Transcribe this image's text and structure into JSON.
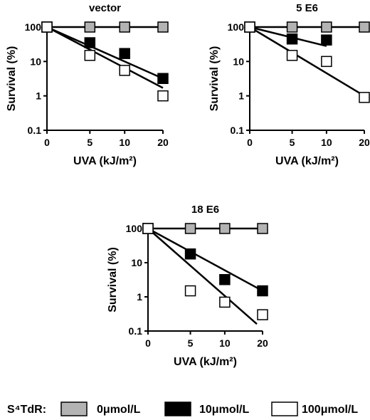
{
  "colors": {
    "gray": "#b3b3b3",
    "black": "#000000",
    "white": "#ffffff"
  },
  "chart_data": [
    {
      "type": "scatter",
      "title": "vector",
      "xlabel": "UVA (kJ/m²)",
      "ylabel": "Survival (%)",
      "y_scale": "log",
      "ylim": [
        0.1,
        100
      ],
      "x_ticks": [
        "0",
        "5",
        "10",
        "20"
      ],
      "y_ticks": [
        "0.1",
        "1",
        "10",
        "100"
      ],
      "series": [
        {
          "name": "0μmol/L",
          "x": [
            0,
            5,
            10,
            20
          ],
          "y": [
            100,
            100,
            100,
            100
          ],
          "fit": [
            [
              0,
              100
            ],
            [
              20,
              100
            ]
          ]
        },
        {
          "name": "10μmol/L",
          "x": [
            0,
            5,
            10,
            20
          ],
          "y": [
            100,
            35,
            17,
            3.2
          ],
          "fit": [
            [
              0,
              100
            ],
            [
              20,
              3.2
            ]
          ]
        },
        {
          "name": "100μmol/L",
          "x": [
            0,
            5,
            10,
            20
          ],
          "y": [
            100,
            15,
            5.5,
            1
          ],
          "fit": [
            [
              0,
              100
            ],
            [
              20,
              1.7
            ]
          ]
        }
      ]
    },
    {
      "type": "scatter",
      "title": "5 E6",
      "xlabel": "UVA (kJ/m²)",
      "ylabel": "Survival (%)",
      "y_scale": "log",
      "ylim": [
        0.1,
        100
      ],
      "x_ticks": [
        "0",
        "5",
        "10",
        "20"
      ],
      "y_ticks": [
        "0.1",
        "1",
        "10",
        "100"
      ],
      "series": [
        {
          "name": "0μmol/L",
          "x": [
            0,
            5,
            10,
            20
          ],
          "y": [
            100,
            100,
            100,
            100
          ],
          "fit": [
            [
              0,
              100
            ],
            [
              20,
              100
            ]
          ]
        },
        {
          "name": "10μmol/L",
          "x": [
            0,
            5,
            10
          ],
          "y": [
            100,
            45,
            42
          ],
          "fit": [
            [
              0,
              100
            ],
            [
              10,
              28
            ]
          ]
        },
        {
          "name": "100μmol/L",
          "x": [
            0,
            5,
            10,
            20
          ],
          "y": [
            100,
            15,
            10,
            0.9
          ],
          "fit": [
            [
              0,
              100
            ],
            [
              20,
              1.0
            ]
          ]
        }
      ]
    },
    {
      "type": "scatter",
      "title": "18 E6",
      "xlabel": "UVA (kJ/m²)",
      "ylabel": "Survival (%)",
      "y_scale": "log",
      "ylim": [
        0.1,
        100
      ],
      "x_ticks": [
        "0",
        "5",
        "10",
        "20"
      ],
      "y_ticks": [
        "0.1",
        "1",
        "10",
        "100"
      ],
      "series": [
        {
          "name": "0μmol/L",
          "x": [
            0,
            5,
            10,
            20
          ],
          "y": [
            100,
            100,
            100,
            100
          ],
          "fit": [
            [
              0,
              100
            ],
            [
              20,
              100
            ]
          ]
        },
        {
          "name": "10μmol/L",
          "x": [
            0,
            5,
            10,
            20
          ],
          "y": [
            100,
            18,
            3.2,
            1.5
          ],
          "fit": [
            [
              0,
              100
            ],
            [
              20,
              1.5
            ]
          ]
        },
        {
          "name": "100μmol/L",
          "x": [
            0,
            5,
            10,
            20
          ],
          "y": [
            100,
            1.5,
            0.7,
            0.3
          ],
          "fit": [
            [
              0,
              100
            ],
            [
              18.5,
              0.16
            ]
          ]
        }
      ]
    }
  ],
  "legend": {
    "label": "S⁴TdR:",
    "items": [
      {
        "label": "0μmol/L",
        "color": "#b3b3b3"
      },
      {
        "label": "10μmol/L",
        "color": "#000000"
      },
      {
        "label": "100μmol/L",
        "color": "#ffffff"
      }
    ]
  }
}
